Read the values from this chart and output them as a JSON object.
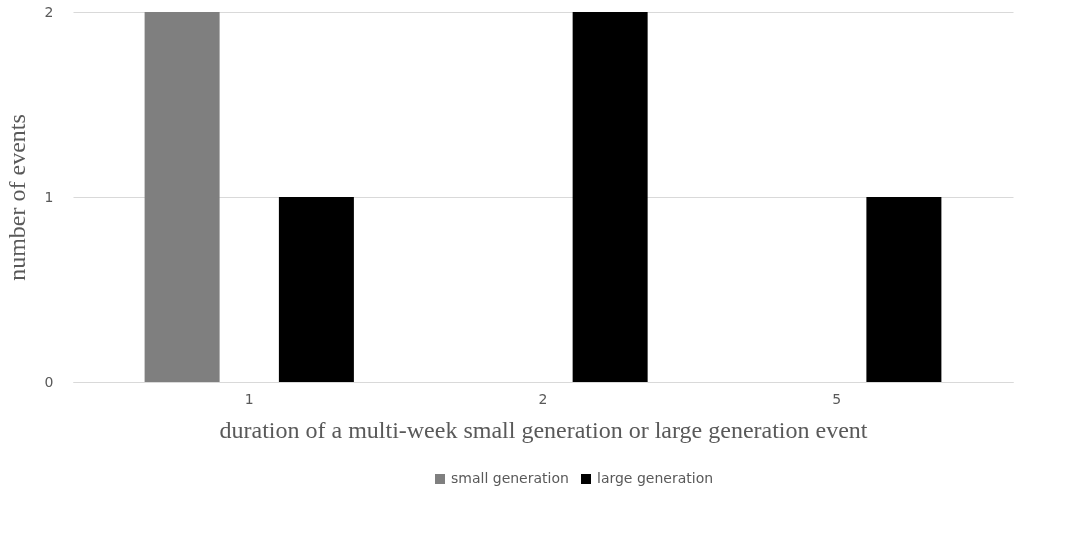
{
  "chart_data": {
    "type": "bar",
    "xlabel": "duration of a multi-week small generation or large generation event",
    "ylabel": "number of events",
    "categories": [
      "1",
      "2",
      "5"
    ],
    "series": [
      {
        "name": "small generation",
        "color": "#7f7f7f",
        "values": [
          2,
          0,
          0
        ]
      },
      {
        "name": "large generation",
        "color": "#000000",
        "values": [
          1,
          2,
          1
        ]
      }
    ],
    "ylim": [
      0,
      2
    ],
    "yticks": [
      0,
      1,
      2
    ],
    "grid": "y",
    "legend": "bottom"
  }
}
